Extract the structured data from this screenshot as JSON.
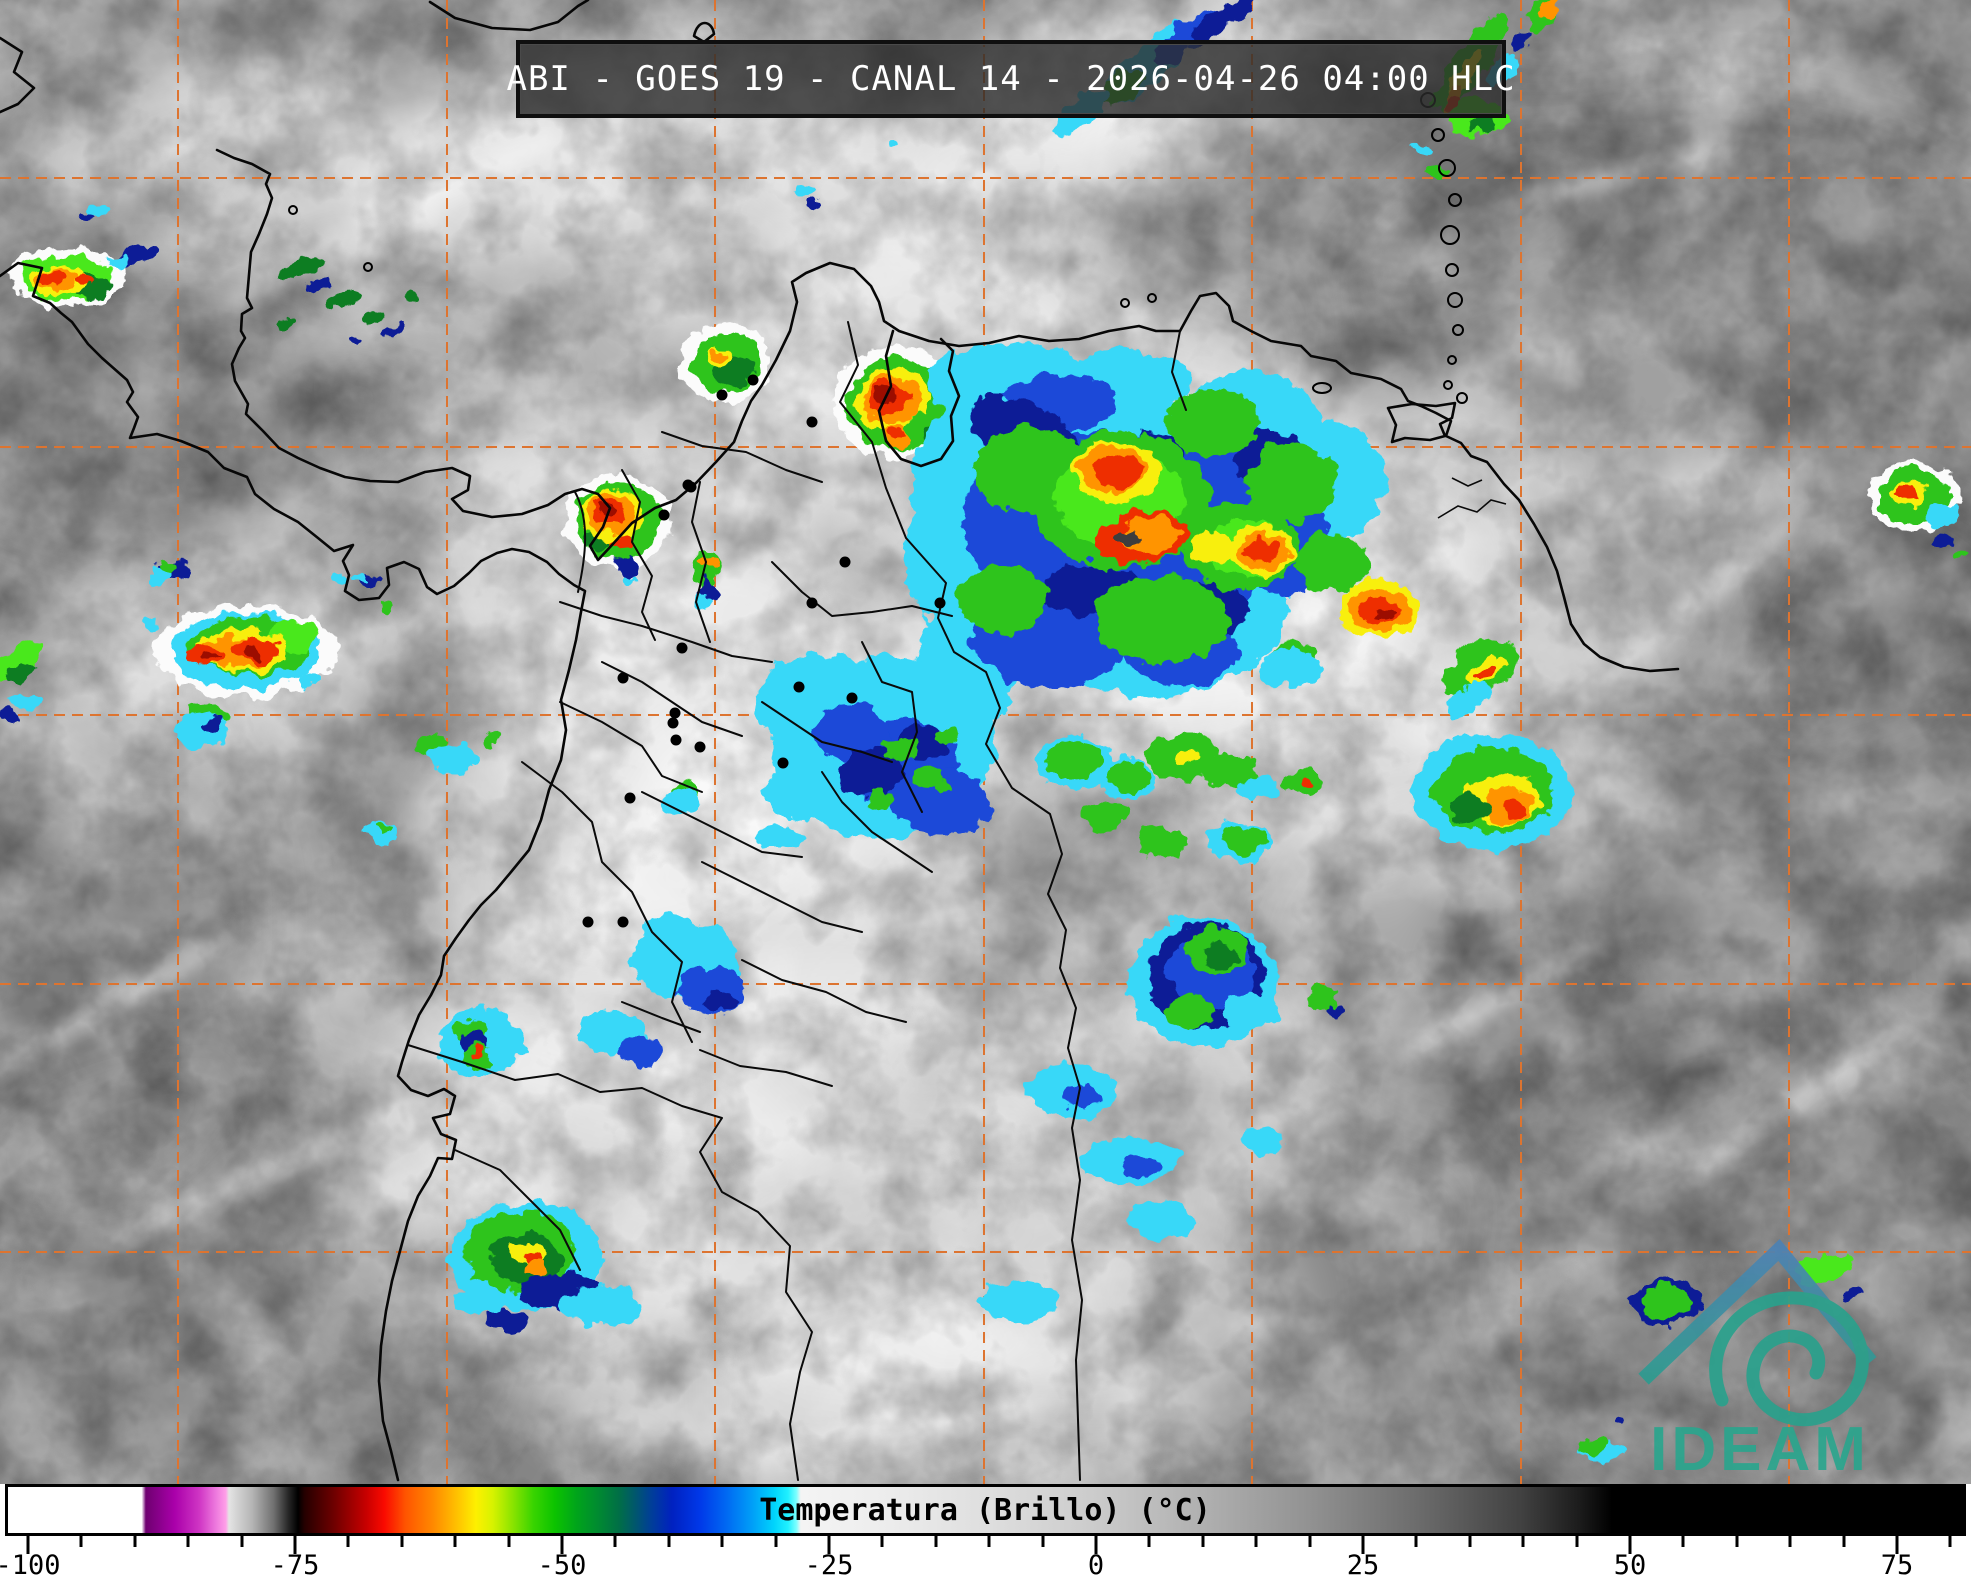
{
  "title_bar": {
    "text": "ABI - GOES 19 - CANAL 14 - 2026-04-26 04:00 HLC"
  },
  "logo": {
    "text": "IDEAM"
  },
  "colorbar": {
    "label": "Temperatura (Brillo) (°C)",
    "tick_min": -100,
    "tick_max": 80,
    "tick_step": 5,
    "label_every": 25,
    "labels": [
      "-100",
      "-75",
      "-50",
      "-25",
      "0",
      "25",
      "50",
      "75"
    ],
    "gradient_stops": [
      {
        "t": -102.5,
        "color": "#ffffff"
      },
      {
        "t": -89.6,
        "color": "#ffffff"
      },
      {
        "t": -89.2,
        "color": "#6e0070"
      },
      {
        "t": -86.5,
        "color": "#aa00aa"
      },
      {
        "t": -84.2,
        "color": "#cf35c4"
      },
      {
        "t": -82.6,
        "color": "#ee7ade"
      },
      {
        "t": -81.7,
        "color": "#ff9fe8"
      },
      {
        "t": -81.4,
        "color": "#e4e4e4"
      },
      {
        "t": -79.2,
        "color": "#b4b4b4"
      },
      {
        "t": -77.2,
        "color": "#707070"
      },
      {
        "t": -75.8,
        "color": "#262626"
      },
      {
        "t": -74.9,
        "color": "#000000"
      },
      {
        "t": -74.3,
        "color": "#250000"
      },
      {
        "t": -71.5,
        "color": "#6f0000"
      },
      {
        "t": -68.5,
        "color": "#c80000"
      },
      {
        "t": -66.8,
        "color": "#fa0a00"
      },
      {
        "t": -64.8,
        "color": "#ff5500"
      },
      {
        "t": -62.2,
        "color": "#ff8a00"
      },
      {
        "t": -60.0,
        "color": "#ffc100"
      },
      {
        "t": -58.2,
        "color": "#fef000"
      },
      {
        "t": -56.6,
        "color": "#d6f200"
      },
      {
        "t": -54.8,
        "color": "#8ce400"
      },
      {
        "t": -52.8,
        "color": "#38d400"
      },
      {
        "t": -50.8,
        "color": "#0cc300"
      },
      {
        "t": -48.8,
        "color": "#00a51a"
      },
      {
        "t": -46.8,
        "color": "#008b30"
      },
      {
        "t": -44.8,
        "color": "#006f46"
      },
      {
        "t": -43.2,
        "color": "#00566e"
      },
      {
        "t": -41.8,
        "color": "#003f96"
      },
      {
        "t": -39.8,
        "color": "#0021c0"
      },
      {
        "t": -37.2,
        "color": "#0038e8"
      },
      {
        "t": -34.8,
        "color": "#0066f2"
      },
      {
        "t": -32.2,
        "color": "#00a0f8"
      },
      {
        "t": -30.2,
        "color": "#00d4fc"
      },
      {
        "t": -28.9,
        "color": "#20f0ff"
      },
      {
        "t": -28.1,
        "color": "#7dffff"
      },
      {
        "t": -27.7,
        "color": "#f4f4f4"
      },
      {
        "t": -20.0,
        "color": "#ededed"
      },
      {
        "t": -10.0,
        "color": "#dedede"
      },
      {
        "t": 0.0,
        "color": "#cbcbcb"
      },
      {
        "t": 10.0,
        "color": "#b0b0b0"
      },
      {
        "t": 20.0,
        "color": "#929292"
      },
      {
        "t": 30.0,
        "color": "#6d6d6d"
      },
      {
        "t": 40.0,
        "color": "#414141"
      },
      {
        "t": 45.5,
        "color": "#1b1b1b"
      },
      {
        "t": 48.5,
        "color": "#000000"
      },
      {
        "t": 84.0,
        "color": "#000000"
      }
    ]
  },
  "colors": {
    "grid": "#dd7430",
    "coastline": "#070707",
    "city_dot": "#000000",
    "logo_teal": "#2ba58e",
    "title_background": "rgba(43,43,43,0.8)",
    "colorbar_border": "#000000"
  }
}
